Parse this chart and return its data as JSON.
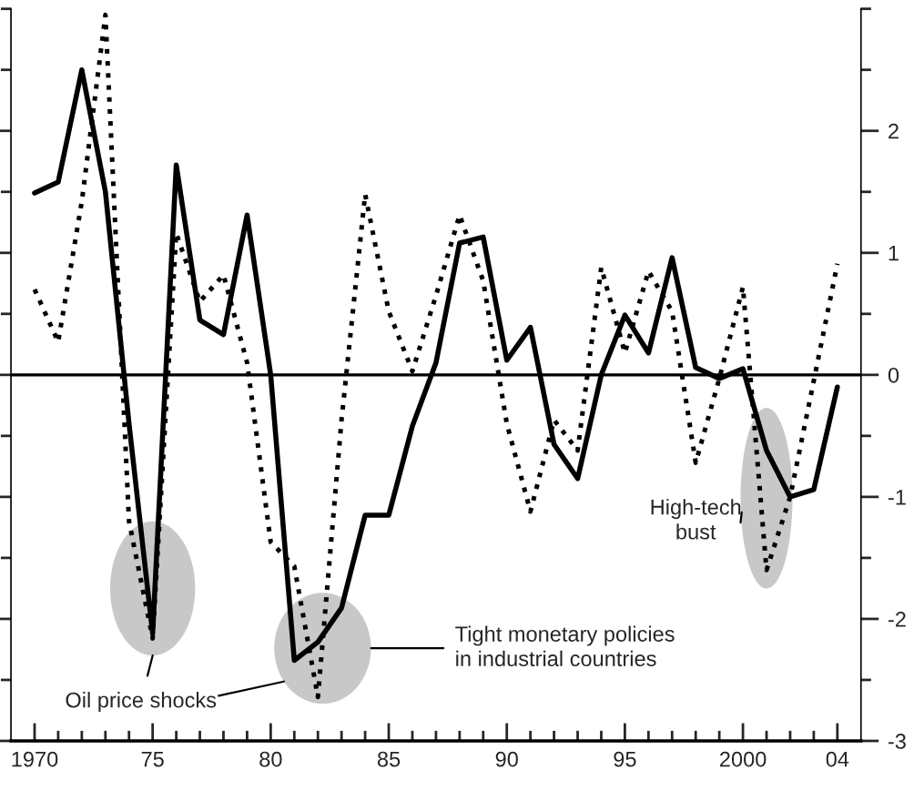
{
  "chart_data": {
    "type": "line",
    "x": [
      1970,
      1971,
      1972,
      1973,
      1974,
      1975,
      1976,
      1977,
      1978,
      1979,
      1980,
      1981,
      1982,
      1983,
      1984,
      1985,
      1986,
      1987,
      1988,
      1989,
      1990,
      1991,
      1992,
      1993,
      1994,
      1995,
      1996,
      1997,
      1998,
      1999,
      2000,
      2001,
      2002,
      2003,
      2004
    ],
    "series": [
      {
        "color": "#000000",
        "line_style": "solid",
        "values": [
          1.49,
          1.58,
          2.5,
          1.5,
          -0.4,
          -2.12,
          1.72,
          0.45,
          0.33,
          1.31,
          0.0,
          -2.34,
          -2.19,
          -1.91,
          -1.15,
          -1.15,
          -0.42,
          0.1,
          1.08,
          1.13,
          0.12,
          0.39,
          -0.57,
          -0.85,
          0.0,
          0.49,
          0.18,
          0.96,
          0.06,
          -0.03,
          0.05,
          -0.62,
          -1.0,
          -0.94,
          -0.1
        ]
      },
      {
        "color": "#000000",
        "line_style": "dotted",
        "values": [
          0.7,
          0.27,
          1.42,
          2.95,
          -1.2,
          -2.16,
          1.16,
          0.6,
          0.82,
          0.1,
          -1.37,
          -1.57,
          -2.64,
          -0.37,
          1.48,
          0.52,
          0.03,
          0.65,
          1.31,
          0.77,
          -0.4,
          -1.12,
          -0.37,
          -0.62,
          0.88,
          0.18,
          0.85,
          0.52,
          -0.72,
          -0.03,
          0.72,
          -1.6,
          -1.0,
          -0.05,
          0.91
        ]
      }
    ],
    "xlim": [
      1969,
      2005
    ],
    "xticks": [
      {
        "value": 1970,
        "label": "1970"
      },
      {
        "value": 1971,
        "label": null
      },
      {
        "value": 1972,
        "label": null
      },
      {
        "value": 1973,
        "label": null
      },
      {
        "value": 1974,
        "label": null
      },
      {
        "value": 1975,
        "label": "75"
      },
      {
        "value": 1976,
        "label": null
      },
      {
        "value": 1977,
        "label": null
      },
      {
        "value": 1978,
        "label": null
      },
      {
        "value": 1979,
        "label": null
      },
      {
        "value": 1980,
        "label": "80"
      },
      {
        "value": 1981,
        "label": null
      },
      {
        "value": 1982,
        "label": null
      },
      {
        "value": 1983,
        "label": null
      },
      {
        "value": 1984,
        "label": null
      },
      {
        "value": 1985,
        "label": "85"
      },
      {
        "value": 1986,
        "label": null
      },
      {
        "value": 1987,
        "label": null
      },
      {
        "value": 1988,
        "label": null
      },
      {
        "value": 1989,
        "label": null
      },
      {
        "value": 1990,
        "label": "90"
      },
      {
        "value": 1991,
        "label": null
      },
      {
        "value": 1992,
        "label": null
      },
      {
        "value": 1993,
        "label": null
      },
      {
        "value": 1994,
        "label": null
      },
      {
        "value": 1995,
        "label": "95"
      },
      {
        "value": 1996,
        "label": null
      },
      {
        "value": 1997,
        "label": null
      },
      {
        "value": 1998,
        "label": null
      },
      {
        "value": 1999,
        "label": null
      },
      {
        "value": 2000,
        "label": "2000"
      },
      {
        "value": 2001,
        "label": null
      },
      {
        "value": 2002,
        "label": null
      },
      {
        "value": 2003,
        "label": null
      },
      {
        "value": 2004,
        "label": "04"
      }
    ],
    "ylim": [
      -3,
      3
    ],
    "yticks": [
      -3,
      {
        "value": -2.5,
        "label": null
      },
      -2,
      {
        "value": -1.5,
        "label": null
      },
      -1,
      {
        "value": -0.5,
        "label": null
      },
      0,
      {
        "value": 0.5,
        "label": null
      },
      1,
      {
        "value": 1.5,
        "label": null
      },
      2,
      {
        "value": 2.5,
        "label": null
      },
      {
        "value": 3,
        "label": null
      }
    ],
    "ref_lines": [
      {
        "axis": "y",
        "value": 0,
        "color": "#000000"
      }
    ],
    "annotations": [
      "Oil price shocks",
      "Tight monetary policies\nin industrial countries",
      "High-tech\nbust"
    ],
    "grid": false,
    "legend": false
  }
}
